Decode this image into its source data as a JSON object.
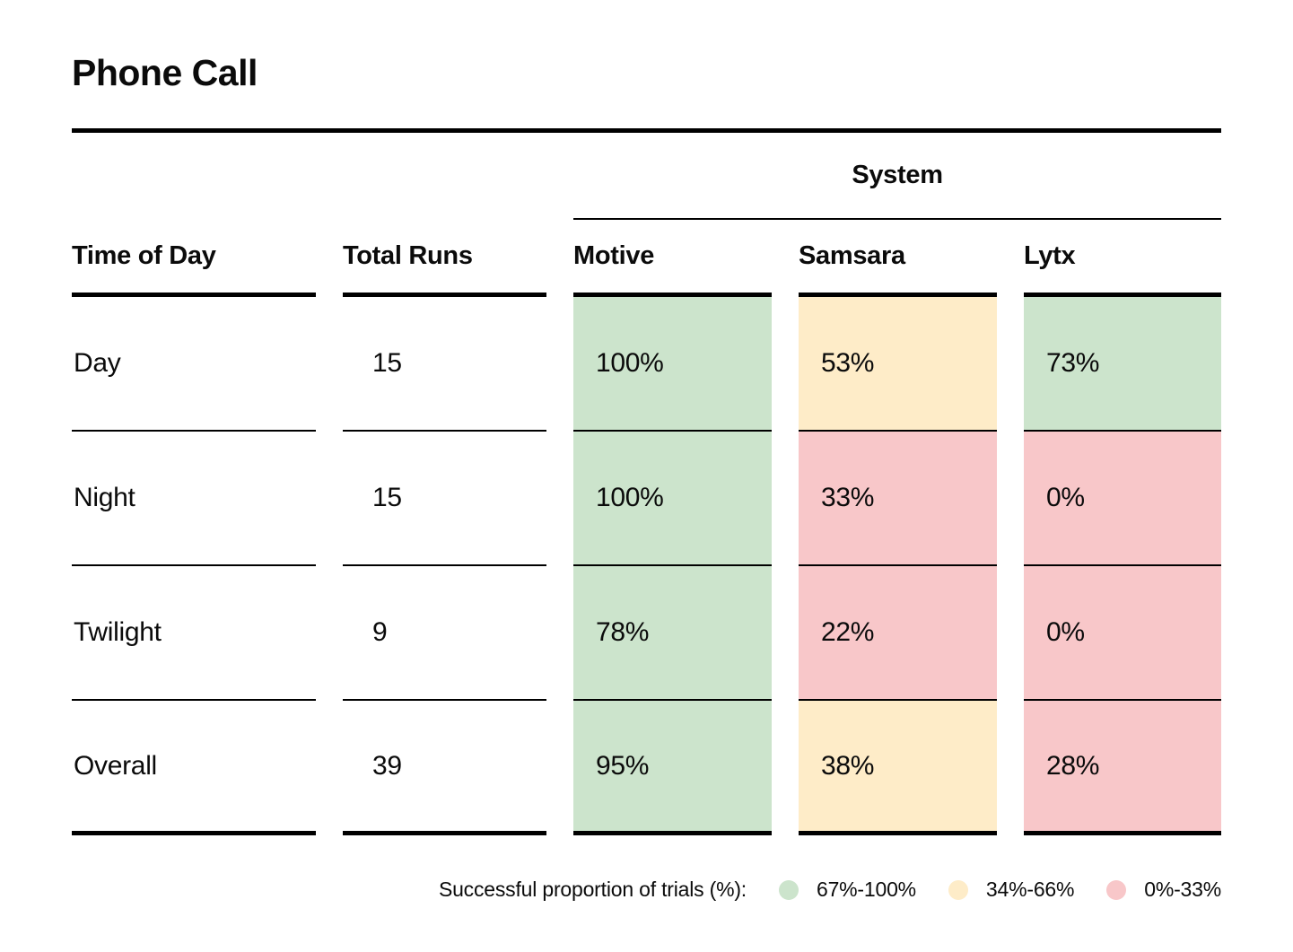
{
  "title": "Phone Call",
  "colors": {
    "green": "#cce4cc",
    "yellow": "#feecc8",
    "pink": "#f8c7c9"
  },
  "table": {
    "group_header": "System",
    "columns": [
      "Time of Day",
      "Total Runs",
      "Motive",
      "Samsara",
      "Lytx"
    ],
    "rows": [
      {
        "cells": [
          {
            "v": "Day"
          },
          {
            "v": "15"
          },
          {
            "v": "100%",
            "c": "green"
          },
          {
            "v": "53%",
            "c": "yellow"
          },
          {
            "v": "73%",
            "c": "green"
          }
        ]
      },
      {
        "cells": [
          {
            "v": "Night"
          },
          {
            "v": "15"
          },
          {
            "v": "100%",
            "c": "green"
          },
          {
            "v": "33%",
            "c": "pink"
          },
          {
            "v": "0%",
            "c": "pink"
          }
        ]
      },
      {
        "cells": [
          {
            "v": "Twilight"
          },
          {
            "v": "9"
          },
          {
            "v": "78%",
            "c": "green"
          },
          {
            "v": "22%",
            "c": "pink"
          },
          {
            "v": "0%",
            "c": "pink"
          }
        ]
      },
      {
        "cells": [
          {
            "v": "Overall"
          },
          {
            "v": "39"
          },
          {
            "v": "95%",
            "c": "green"
          },
          {
            "v": "38%",
            "c": "yellow"
          },
          {
            "v": "28%",
            "c": "pink"
          }
        ]
      }
    ]
  },
  "legend": {
    "label": "Successful proportion of trials (%):",
    "items": [
      {
        "label": "67%-100%",
        "color": "green"
      },
      {
        "label": "34%-66%",
        "color": "yellow"
      },
      {
        "label": "0%-33%",
        "color": "pink"
      }
    ]
  },
  "chart_data": {
    "type": "table",
    "title": "Phone Call",
    "column_group_header": {
      "label": "System",
      "spans": [
        "Motive",
        "Samsara",
        "Lytx"
      ]
    },
    "columns": [
      "Time of Day",
      "Total Runs",
      "Motive",
      "Samsara",
      "Lytx"
    ],
    "rows": [
      [
        "Day",
        15,
        "100%",
        "53%",
        "73%"
      ],
      [
        "Night",
        15,
        "100%",
        "33%",
        "0%"
      ],
      [
        "Twilight",
        9,
        "78%",
        "22%",
        "0%"
      ],
      [
        "Overall",
        39,
        "95%",
        "38%",
        "28%"
      ]
    ],
    "cell_color_bins": [
      {
        "range": "67%-100%",
        "color": "#cce4cc"
      },
      {
        "range": "34%-66%",
        "color": "#feecc8"
      },
      {
        "range": "0%-33%",
        "color": "#f8c7c9"
      }
    ],
    "legend_label": "Successful proportion of trials (%):"
  }
}
